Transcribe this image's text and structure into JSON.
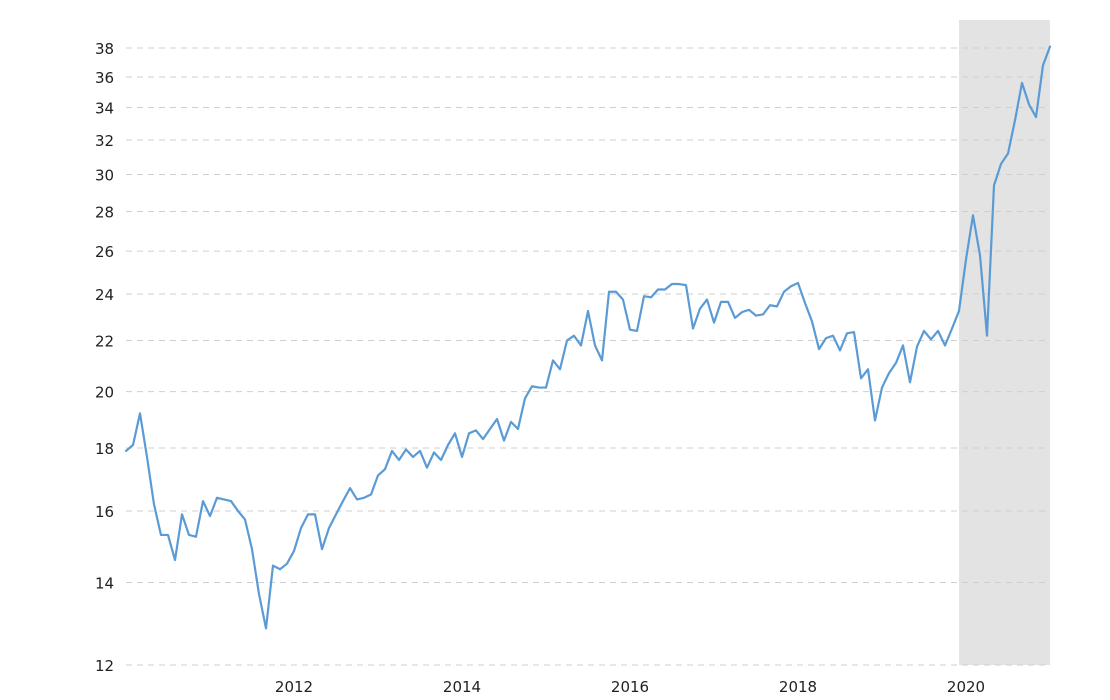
{
  "chart_data": {
    "type": "line",
    "title": "",
    "xlabel": "",
    "ylabel": "",
    "scale_y": "log",
    "grid": true,
    "xlim": [
      "2010-01",
      "2020-10"
    ],
    "ylim": [
      12,
      39
    ],
    "x_ticks": [
      "2012",
      "2014",
      "2016",
      "2018",
      "2020"
    ],
    "y_ticks": [
      12,
      14,
      16,
      18,
      20,
      22,
      24,
      26,
      28,
      30,
      32,
      34,
      36,
      38
    ],
    "shaded_regions": [
      {
        "start": "2019-12",
        "end": "2020-10"
      }
    ],
    "series": [
      {
        "values": [
          [
            "2010-01",
            17.9
          ],
          [
            "2010-02",
            18.1
          ],
          [
            "2010-03",
            19.2
          ],
          [
            "2010-04",
            17.7
          ],
          [
            "2010-05",
            16.2
          ],
          [
            "2010-06",
            15.3
          ],
          [
            "2010-07",
            15.3
          ],
          [
            "2010-08",
            14.6
          ],
          [
            "2010-09",
            15.9
          ],
          [
            "2010-10",
            15.3
          ],
          [
            "2010-11",
            15.25
          ],
          [
            "2010-12",
            16.3
          ],
          [
            "2011-01",
            15.85
          ],
          [
            "2011-02",
            16.4
          ],
          [
            "2011-03",
            16.35
          ],
          [
            "2011-04",
            16.3
          ],
          [
            "2011-05",
            16.0
          ],
          [
            "2011-06",
            15.75
          ],
          [
            "2011-07",
            14.9
          ],
          [
            "2011-08",
            13.7
          ],
          [
            "2011-09",
            12.85
          ],
          [
            "2011-10",
            14.45
          ],
          [
            "2011-11",
            14.35
          ],
          [
            "2011-12",
            14.5
          ],
          [
            "2012-01",
            14.85
          ],
          [
            "2012-02",
            15.5
          ],
          [
            "2012-03",
            15.9
          ],
          [
            "2012-04",
            15.9
          ],
          [
            "2012-05",
            14.9
          ],
          [
            "2012-06",
            15.5
          ],
          [
            "2012-07",
            15.9
          ],
          [
            "2012-08",
            16.3
          ],
          [
            "2012-09",
            16.7
          ],
          [
            "2012-10",
            16.35
          ],
          [
            "2012-11",
            16.4
          ],
          [
            "2012-12",
            16.5
          ],
          [
            "2013-01",
            17.1
          ],
          [
            "2013-02",
            17.3
          ],
          [
            "2013-03",
            17.9
          ],
          [
            "2013-04",
            17.6
          ],
          [
            "2013-05",
            17.95
          ],
          [
            "2013-06",
            17.7
          ],
          [
            "2013-07",
            17.9
          ],
          [
            "2013-08",
            17.35
          ],
          [
            "2013-09",
            17.85
          ],
          [
            "2013-10",
            17.6
          ],
          [
            "2013-11",
            18.1
          ],
          [
            "2013-12",
            18.5
          ],
          [
            "2014-01",
            17.7
          ],
          [
            "2014-02",
            18.5
          ],
          [
            "2014-03",
            18.6
          ],
          [
            "2014-04",
            18.3
          ],
          [
            "2014-05",
            18.65
          ],
          [
            "2014-06",
            19.0
          ],
          [
            "2014-07",
            18.25
          ],
          [
            "2014-08",
            18.9
          ],
          [
            "2014-09",
            18.65
          ],
          [
            "2014-10",
            19.75
          ],
          [
            "2014-11",
            20.2
          ],
          [
            "2014-12",
            20.15
          ],
          [
            "2015-01",
            20.15
          ],
          [
            "2015-02",
            21.2
          ],
          [
            "2015-03",
            20.85
          ],
          [
            "2015-04",
            22.0
          ],
          [
            "2015-05",
            22.2
          ],
          [
            "2015-06",
            21.8
          ],
          [
            "2015-07",
            23.25
          ],
          [
            "2015-08",
            21.8
          ],
          [
            "2015-09",
            21.2
          ],
          [
            "2015-10",
            24.1
          ],
          [
            "2015-11",
            24.1
          ],
          [
            "2015-12",
            23.75
          ],
          [
            "2016-01",
            22.45
          ],
          [
            "2016-02",
            22.4
          ],
          [
            "2016-03",
            23.9
          ],
          [
            "2016-04",
            23.85
          ],
          [
            "2016-05",
            24.2
          ],
          [
            "2016-06",
            24.2
          ],
          [
            "2016-07",
            24.45
          ],
          [
            "2016-08",
            24.45
          ],
          [
            "2016-09",
            24.4
          ],
          [
            "2016-10",
            22.5
          ],
          [
            "2016-11",
            23.35
          ],
          [
            "2016-12",
            23.75
          ],
          [
            "2017-01",
            22.75
          ],
          [
            "2017-02",
            23.65
          ],
          [
            "2017-03",
            23.65
          ],
          [
            "2017-04",
            22.95
          ],
          [
            "2017-05",
            23.2
          ],
          [
            "2017-06",
            23.3
          ],
          [
            "2017-07",
            23.05
          ],
          [
            "2017-08",
            23.1
          ],
          [
            "2017-09",
            23.5
          ],
          [
            "2017-10",
            23.45
          ],
          [
            "2017-11",
            24.1
          ],
          [
            "2017-12",
            24.35
          ],
          [
            "2018-01",
            24.5
          ],
          [
            "2018-02",
            23.6
          ],
          [
            "2018-03",
            22.8
          ],
          [
            "2018-04",
            21.65
          ],
          [
            "2018-05",
            22.1
          ],
          [
            "2018-06",
            22.2
          ],
          [
            "2018-07",
            21.6
          ],
          [
            "2018-08",
            22.3
          ],
          [
            "2018-09",
            22.35
          ],
          [
            "2018-10",
            20.5
          ],
          [
            "2018-11",
            20.85
          ],
          [
            "2018-12",
            18.95
          ],
          [
            "2019-01",
            20.15
          ],
          [
            "2019-02",
            20.7
          ],
          [
            "2019-03",
            21.1
          ],
          [
            "2019-04",
            21.8
          ],
          [
            "2019-05",
            20.35
          ],
          [
            "2019-06",
            21.75
          ],
          [
            "2019-07",
            22.4
          ],
          [
            "2019-08",
            22.05
          ],
          [
            "2019-09",
            22.4
          ],
          [
            "2019-10",
            21.8
          ],
          [
            "2019-11",
            22.5
          ],
          [
            "2019-12",
            23.25
          ],
          [
            "2020-01",
            25.6
          ],
          [
            "2020-02",
            27.8
          ],
          [
            "2020-03",
            25.8
          ],
          [
            "2020-04",
            22.2
          ],
          [
            "2020-05",
            29.4
          ],
          [
            "2020-06",
            30.6
          ],
          [
            "2020-07",
            31.2
          ],
          [
            "2020-08",
            33.2
          ],
          [
            "2020-09",
            35.6
          ],
          [
            "2020-10",
            34.2
          ],
          [
            "2020-11",
            33.4
          ],
          [
            "2020-12",
            36.8
          ],
          [
            "2021-01",
            38.1
          ]
        ]
      }
    ],
    "colors": {
      "line": "#5b9bd5",
      "shade": "#e3e3e3",
      "grid": "#cfcfcf",
      "tick_text": "#222222"
    }
  }
}
